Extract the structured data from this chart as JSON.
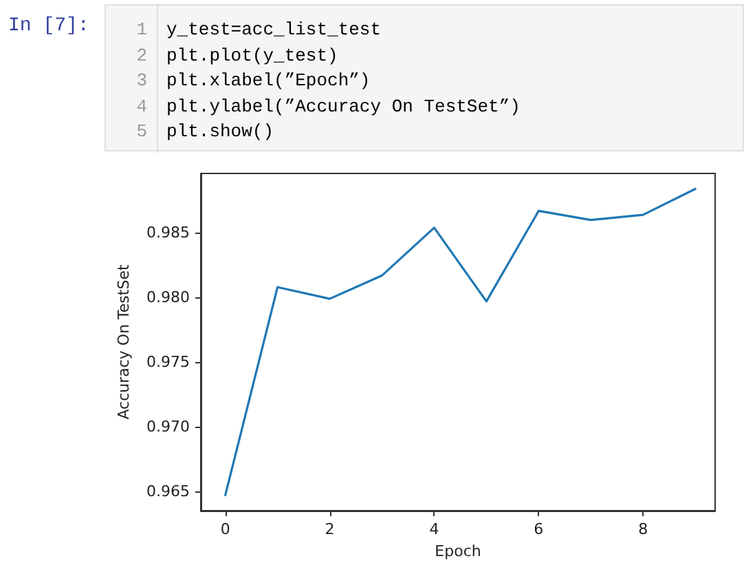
{
  "chart_data": {
    "type": "line",
    "xlabel": "Epoch",
    "ylabel": "Accuracy On TestSet",
    "annotations": [
      "In [7]:",
      "1",
      "y_test=acc_list_test",
      "2",
      "plt.plot(y_test)",
      "3",
      "plt.xlabel(”Epoch”)",
      "4",
      "plt.ylabel(”Accuracy On TestSet”)",
      "5",
      "plt.show()"
    ],
    "x": [
      0,
      1,
      2,
      3,
      4,
      5,
      6,
      7,
      8,
      9
    ],
    "series": [
      {
        "color": "#1f77b4",
        "values": [
          0.9647,
          0.9808,
          0.9799,
          0.9817,
          0.9854,
          0.9797,
          0.9867,
          0.986,
          0.9864,
          0.9884
        ]
      }
    ],
    "xlim": [
      -0.47,
      9.38
    ],
    "ylim": [
      0.9635,
      0.9896
    ],
    "xticks": [
      0,
      2,
      4,
      6,
      8
    ],
    "yticks": [
      0.965,
      {
        "value": 0.97,
        "label": "0.970"
      },
      0.975,
      {
        "value": 0.98,
        "label": "0.980"
      },
      0.985
    ],
    "grid": false,
    "marker": "none",
    "line_style": "solid"
  }
}
